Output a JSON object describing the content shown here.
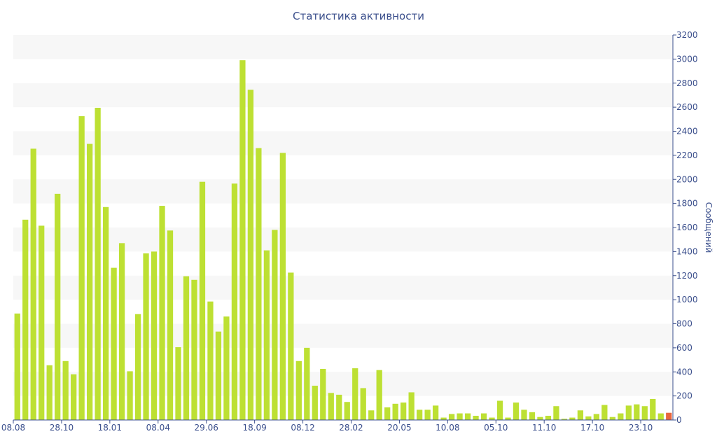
{
  "chart_data": {
    "type": "bar",
    "title": "Статистика активности",
    "ylabel": "Сообщений",
    "xlabel": "",
    "ylim": [
      0,
      3200
    ],
    "y_ticks": [
      0,
      200,
      400,
      600,
      800,
      1000,
      1200,
      1400,
      1600,
      1800,
      2000,
      2200,
      2400,
      2600,
      2800,
      3000,
      3200
    ],
    "y_axis_side": "right",
    "grid": "alternating horizontal bands",
    "x_tick_labels": [
      "08.08",
      "28.10",
      "18.01",
      "08.04",
      "29.06",
      "18.09",
      "08.12",
      "28.02",
      "20.05",
      "10.08",
      "05.10",
      "11.10",
      "17.10",
      "23.10"
    ],
    "colors": {
      "bar": "#bde033",
      "highlight_bar": "#e8663d",
      "band": "#f7f7f7",
      "text": "#3b4f8c"
    },
    "values": [
      885,
      1665,
      2255,
      1615,
      455,
      1880,
      490,
      380,
      2525,
      2295,
      2595,
      1770,
      1265,
      1470,
      405,
      880,
      1385,
      1400,
      1780,
      1575,
      605,
      1195,
      1165,
      1980,
      985,
      735,
      860,
      1965,
      2990,
      2745,
      2260,
      1410,
      1580,
      2220,
      1225,
      490,
      600,
      285,
      425,
      225,
      210,
      150,
      430,
      265,
      80,
      415,
      105,
      135,
      145,
      230,
      85,
      85,
      120,
      20,
      50,
      55,
      55,
      35,
      55,
      20,
      160,
      20,
      145,
      85,
      65,
      25,
      35,
      115,
      10,
      20,
      80,
      30,
      50,
      125,
      25,
      55,
      120,
      130,
      115,
      175,
      55,
      60
    ],
    "highlight_index": 81
  }
}
